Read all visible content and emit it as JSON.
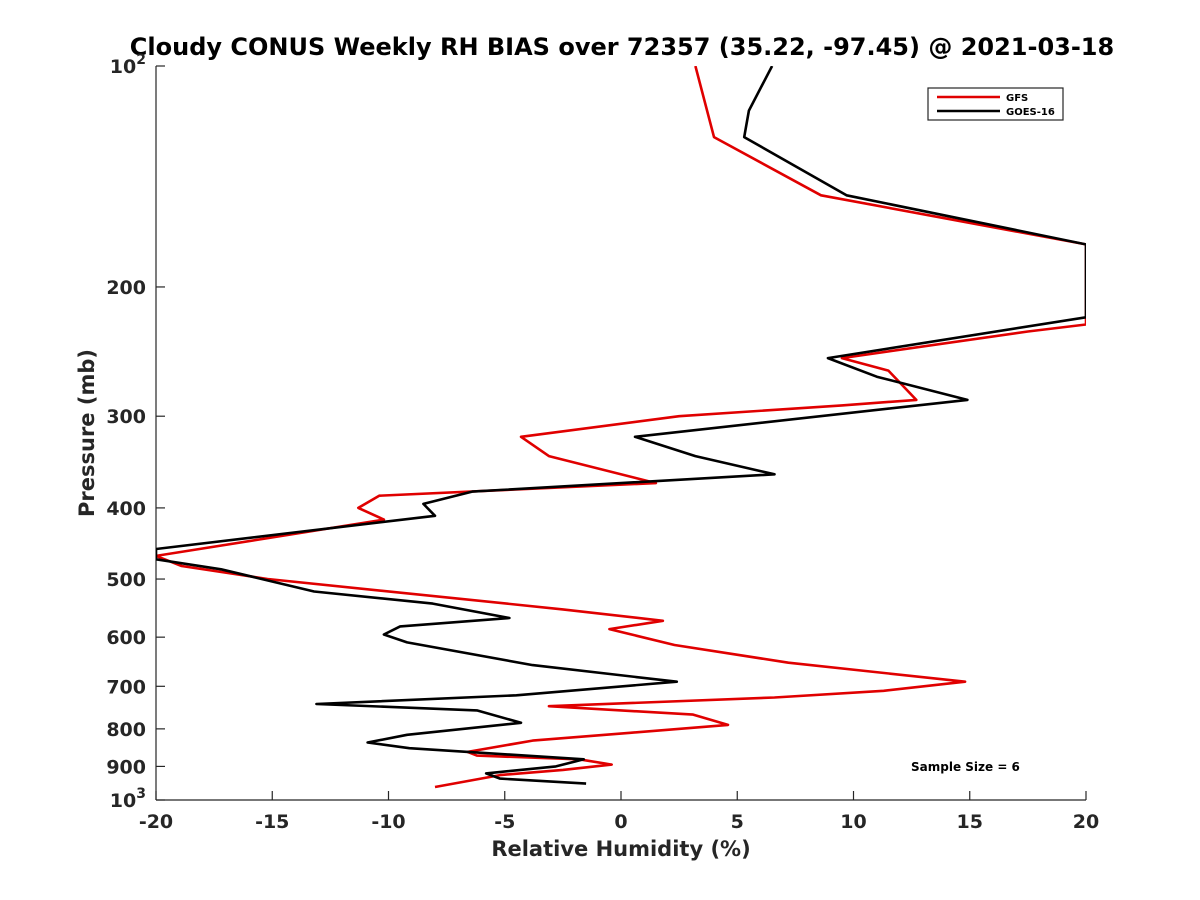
{
  "chart_data": {
    "type": "line",
    "title": "Cloudy CONUS Weekly RH BIAS over 72357 (35.22, -97.45) @ 2021-03-18",
    "xlabel": "Relative Humidity (%)",
    "ylabel": "Pressure (mb)",
    "xlim": [
      -20,
      20
    ],
    "ylim": [
      100,
      1000
    ],
    "y_scale": "log",
    "y_reversed": true,
    "x_ticks": [
      -20,
      -15,
      -10,
      -5,
      0,
      5,
      10,
      15,
      20
    ],
    "x_tick_labels": [
      "-20",
      "-15",
      "-10",
      "-5",
      "0",
      "5",
      "10",
      "15",
      "20"
    ],
    "y_ticks": [
      100,
      200,
      300,
      400,
      500,
      600,
      700,
      800,
      900,
      1000
    ],
    "y_tick_labels": [
      {
        "base": "10",
        "exp": "2"
      },
      {
        "base": "200"
      },
      {
        "base": "300"
      },
      {
        "base": "400"
      },
      {
        "base": "500"
      },
      {
        "base": "600"
      },
      {
        "base": "700"
      },
      {
        "base": "800"
      },
      {
        "base": "900"
      },
      {
        "base": "10",
        "exp": "3"
      }
    ],
    "grid": false,
    "legend_position": "top-right",
    "annotation": "Sample Size = 6",
    "series": [
      {
        "name": "GFS",
        "color": "#e00000",
        "points": [
          [
            3.2,
            100
          ],
          [
            4.0,
            125
          ],
          [
            8.6,
            150
          ],
          [
            20.0,
            175
          ],
          [
            20.0,
            225
          ],
          [
            17.5,
            230
          ],
          [
            9.5,
            250
          ],
          [
            11.5,
            260
          ],
          [
            12.7,
            285
          ],
          [
            9.5,
            290
          ],
          [
            2.5,
            300
          ],
          [
            -4.3,
            320
          ],
          [
            -3.1,
            340
          ],
          [
            1.5,
            370
          ],
          [
            -10.4,
            385
          ],
          [
            -11.3,
            400
          ],
          [
            -10.2,
            415
          ],
          [
            -20.0,
            465
          ],
          [
            -18.9,
            480
          ],
          [
            -15.2,
            500
          ],
          [
            -2.5,
            550
          ],
          [
            1.8,
            570
          ],
          [
            -0.5,
            585
          ],
          [
            2.3,
            615
          ],
          [
            7.2,
            650
          ],
          [
            14.8,
            690
          ],
          [
            11.3,
            710
          ],
          [
            6.6,
            725
          ],
          [
            -3.1,
            745
          ],
          [
            3.1,
            765
          ],
          [
            4.6,
            790
          ],
          [
            0.4,
            810
          ],
          [
            -3.8,
            830
          ],
          [
            -6.6,
            860
          ],
          [
            -6.2,
            870
          ],
          [
            -1.8,
            880
          ],
          [
            -0.4,
            895
          ],
          [
            -2.5,
            910
          ],
          [
            -5.2,
            925
          ],
          [
            -8.0,
            960
          ]
        ]
      },
      {
        "name": "GOES-16",
        "color": "#000000",
        "points": [
          [
            6.5,
            100
          ],
          [
            5.5,
            115
          ],
          [
            5.3,
            125
          ],
          [
            9.7,
            150
          ],
          [
            20.0,
            175
          ],
          [
            20.0,
            220
          ],
          [
            8.9,
            250
          ],
          [
            11.0,
            265
          ],
          [
            14.9,
            285
          ],
          [
            0.6,
            320
          ],
          [
            3.2,
            340
          ],
          [
            6.6,
            360
          ],
          [
            -6.4,
            380
          ],
          [
            -8.5,
            395
          ],
          [
            -8.0,
            410
          ],
          [
            -20.0,
            455
          ],
          [
            -20.0,
            470
          ],
          [
            -17.2,
            485
          ],
          [
            -13.2,
            520
          ],
          [
            -8.1,
            540
          ],
          [
            -4.8,
            565
          ],
          [
            -9.5,
            580
          ],
          [
            -10.2,
            595
          ],
          [
            -9.2,
            610
          ],
          [
            -3.8,
            655
          ],
          [
            2.4,
            690
          ],
          [
            -4.5,
            720
          ],
          [
            -13.1,
            740
          ],
          [
            -6.2,
            755
          ],
          [
            -4.3,
            785
          ],
          [
            -9.2,
            815
          ],
          [
            -10.9,
            835
          ],
          [
            -9.1,
            850
          ],
          [
            -1.6,
            880
          ],
          [
            -2.8,
            900
          ],
          [
            -5.8,
            920
          ],
          [
            -5.2,
            935
          ],
          [
            -1.5,
            950
          ]
        ]
      }
    ]
  }
}
